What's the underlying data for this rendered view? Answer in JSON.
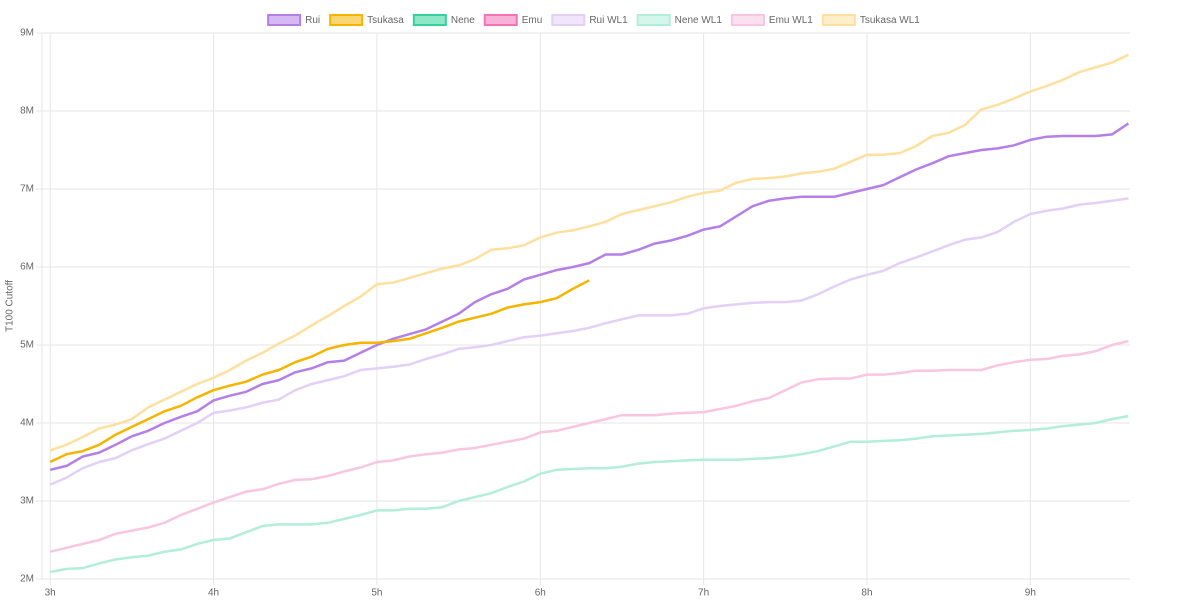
{
  "chart_data": {
    "type": "line",
    "y_label": "T100 Cutoff",
    "x": [
      3.0,
      3.1,
      3.2,
      3.3,
      3.4,
      3.5,
      3.6,
      3.7,
      3.8,
      3.9,
      4.0,
      4.1,
      4.2,
      4.3,
      4.4,
      4.5,
      4.6,
      4.7,
      4.8,
      4.9,
      5.0,
      5.1,
      5.2,
      5.3,
      5.4,
      5.5,
      5.6,
      5.7,
      5.8,
      5.9,
      6.0,
      6.1,
      6.2,
      6.3,
      6.4,
      6.5,
      6.6,
      6.7,
      6.8,
      6.9,
      7.0,
      7.1,
      7.2,
      7.3,
      7.4,
      7.5,
      7.6,
      7.7,
      7.8,
      7.9,
      8.0,
      8.1,
      8.2,
      8.3,
      8.4,
      8.5,
      8.6,
      8.7,
      8.8,
      8.9,
      9.0,
      9.1,
      9.2,
      9.3,
      9.4,
      9.5,
      9.6
    ],
    "xlim": [
      2.95,
      9.61
    ],
    "xticks": [
      {
        "value": 3,
        "label": "3h"
      },
      {
        "value": 4,
        "label": "4h"
      },
      {
        "value": 5,
        "label": "5h"
      },
      {
        "value": 6,
        "label": "6h"
      },
      {
        "value": 7,
        "label": "7h"
      },
      {
        "value": 8,
        "label": "8h"
      },
      {
        "value": 9,
        "label": "9h"
      }
    ],
    "ylim": [
      2,
      9
    ],
    "yticks": [
      {
        "value": 2,
        "label": "2M"
      },
      {
        "value": 3,
        "label": "3M"
      },
      {
        "value": 4,
        "label": "4M"
      },
      {
        "value": 5,
        "label": "5M"
      },
      {
        "value": 6,
        "label": "6M"
      },
      {
        "value": 7,
        "label": "7M"
      },
      {
        "value": 8,
        "label": "8M"
      },
      {
        "value": 9,
        "label": "9M"
      }
    ],
    "grid": true,
    "legend": "top",
    "series": [
      {
        "name": "Rui",
        "color": "#b57fe8",
        "values": [
          3.4,
          3.45,
          3.57,
          3.62,
          3.72,
          3.83,
          3.9,
          4.0,
          4.08,
          4.15,
          4.29,
          4.35,
          4.4,
          4.5,
          4.55,
          4.65,
          4.7,
          4.78,
          4.8,
          4.9,
          5.0,
          5.08,
          5.14,
          5.2,
          5.3,
          5.4,
          5.55,
          5.65,
          5.72,
          5.84,
          5.9,
          5.96,
          6.0,
          6.05,
          6.16,
          6.16,
          6.22,
          6.3,
          6.34,
          6.4,
          6.48,
          6.52,
          6.65,
          6.78,
          6.85,
          6.88,
          6.9,
          6.9,
          6.9,
          6.95,
          7.0,
          7.05,
          7.15,
          7.25,
          7.33,
          7.42,
          7.46,
          7.5,
          7.52,
          7.56,
          7.63,
          7.67,
          7.68,
          7.68,
          7.68,
          7.7,
          7.84
        ]
      },
      {
        "name": "Tsukasa",
        "color": "#f5b400",
        "values": [
          3.5,
          3.6,
          3.64,
          3.72,
          3.85,
          3.95,
          4.05,
          4.15,
          4.22,
          4.33,
          4.42,
          4.48,
          4.53,
          4.62,
          4.68,
          4.78,
          4.85,
          4.95,
          5.0,
          5.03,
          5.03,
          5.05,
          5.08,
          5.15,
          5.22,
          5.3,
          5.35,
          5.4,
          5.48,
          5.52,
          5.55,
          5.6,
          5.72,
          5.83,
          null,
          null,
          null,
          null,
          null,
          null,
          null,
          null,
          null,
          null,
          null,
          null,
          null,
          null,
          null,
          null,
          null,
          null,
          null,
          null,
          null,
          null,
          null,
          null,
          null,
          null,
          null,
          null,
          null,
          null,
          null,
          null,
          null
        ]
      },
      {
        "name": "Nene",
        "color": "#34d399",
        "values": [
          null,
          null,
          null,
          null,
          null,
          null,
          null,
          null,
          null,
          null,
          null,
          null,
          null,
          null,
          null,
          null,
          null,
          null,
          null,
          null,
          null,
          null,
          null,
          null,
          null,
          null,
          null,
          null,
          null,
          null,
          null,
          null,
          null,
          null,
          null,
          null,
          null,
          null,
          null,
          null,
          null,
          null,
          null,
          null,
          null,
          null,
          null,
          null,
          null,
          null,
          null,
          null,
          null,
          null,
          null,
          null,
          null,
          null,
          null,
          null,
          null,
          null,
          null,
          null,
          null,
          null,
          null
        ]
      },
      {
        "name": "Emu",
        "color": "#f472b6",
        "values": [
          null,
          null,
          null,
          null,
          null,
          null,
          null,
          null,
          null,
          null,
          null,
          null,
          null,
          null,
          null,
          null,
          null,
          null,
          null,
          null,
          null,
          null,
          null,
          null,
          null,
          null,
          null,
          null,
          null,
          null,
          null,
          null,
          null,
          null,
          null,
          null,
          null,
          null,
          null,
          null,
          null,
          null,
          null,
          null,
          null,
          null,
          null,
          null,
          null,
          null,
          null,
          null,
          null,
          null,
          null,
          null,
          null,
          null,
          null,
          null,
          null,
          null,
          null,
          null,
          null,
          null,
          null
        ]
      },
      {
        "name": "Rui WL1",
        "color": "#e3d0f7",
        "values": [
          3.21,
          3.3,
          3.42,
          3.5,
          3.55,
          3.65,
          3.73,
          3.8,
          3.9,
          4.0,
          4.13,
          4.16,
          4.2,
          4.26,
          4.3,
          4.42,
          4.5,
          4.55,
          4.6,
          4.68,
          4.7,
          4.72,
          4.75,
          4.82,
          4.88,
          4.95,
          4.97,
          5.0,
          5.05,
          5.1,
          5.12,
          5.15,
          5.18,
          5.22,
          5.28,
          5.33,
          5.38,
          5.38,
          5.38,
          5.4,
          5.47,
          5.5,
          5.52,
          5.54,
          5.55,
          5.55,
          5.57,
          5.65,
          5.75,
          5.84,
          5.9,
          5.95,
          6.05,
          6.12,
          6.2,
          6.28,
          6.35,
          6.38,
          6.45,
          6.58,
          6.68,
          6.72,
          6.75,
          6.8,
          6.82,
          6.85,
          6.88
        ]
      },
      {
        "name": "Nene WL1",
        "color": "#b2eed8",
        "values": [
          2.09,
          2.13,
          2.14,
          2.2,
          2.25,
          2.28,
          2.3,
          2.35,
          2.38,
          2.45,
          2.5,
          2.52,
          2.6,
          2.68,
          2.7,
          2.7,
          2.7,
          2.72,
          2.77,
          2.82,
          2.88,
          2.88,
          2.9,
          2.9,
          2.92,
          3.0,
          3.05,
          3.1,
          3.18,
          3.25,
          3.35,
          3.4,
          3.41,
          3.42,
          3.42,
          3.44,
          3.48,
          3.5,
          3.51,
          3.52,
          3.53,
          3.53,
          3.53,
          3.54,
          3.55,
          3.57,
          3.6,
          3.64,
          3.7,
          3.76,
          3.76,
          3.77,
          3.78,
          3.8,
          3.83,
          3.84,
          3.85,
          3.86,
          3.88,
          3.9,
          3.91,
          3.93,
          3.96,
          3.98,
          4.0,
          4.05,
          4.09
        ]
      },
      {
        "name": "Emu WL1",
        "color": "#f9c6e1",
        "values": [
          2.35,
          2.4,
          2.45,
          2.5,
          2.58,
          2.62,
          2.66,
          2.72,
          2.82,
          2.9,
          2.98,
          3.05,
          3.12,
          3.15,
          3.22,
          3.27,
          3.28,
          3.32,
          3.38,
          3.43,
          3.5,
          3.52,
          3.57,
          3.6,
          3.62,
          3.66,
          3.68,
          3.72,
          3.76,
          3.8,
          3.88,
          3.9,
          3.95,
          4.0,
          4.05,
          4.1,
          4.1,
          4.1,
          4.12,
          4.13,
          4.14,
          4.18,
          4.22,
          4.28,
          4.32,
          4.42,
          4.52,
          4.56,
          4.57,
          4.57,
          4.62,
          4.62,
          4.64,
          4.67,
          4.67,
          4.68,
          4.68,
          4.68,
          4.74,
          4.78,
          4.81,
          4.82,
          4.86,
          4.88,
          4.92,
          5.0,
          5.05
        ]
      },
      {
        "name": "Tsukasa WL1",
        "color": "#fde09e",
        "values": [
          3.65,
          3.72,
          3.82,
          3.93,
          3.98,
          4.05,
          4.2,
          4.3,
          4.4,
          4.5,
          4.58,
          4.68,
          4.8,
          4.9,
          5.02,
          5.12,
          5.25,
          5.37,
          5.5,
          5.62,
          5.78,
          5.8,
          5.86,
          5.92,
          5.98,
          6.02,
          6.1,
          6.22,
          6.24,
          6.28,
          6.38,
          6.44,
          6.47,
          6.52,
          6.58,
          6.68,
          6.73,
          6.78,
          6.83,
          6.9,
          6.95,
          6.98,
          7.08,
          7.13,
          7.14,
          7.16,
          7.2,
          7.22,
          7.26,
          7.35,
          7.44,
          7.44,
          7.46,
          7.55,
          7.68,
          7.72,
          7.82,
          8.02,
          8.08,
          8.16,
          8.25,
          8.32,
          8.4,
          8.5,
          8.56,
          8.62,
          8.72
        ]
      }
    ]
  }
}
